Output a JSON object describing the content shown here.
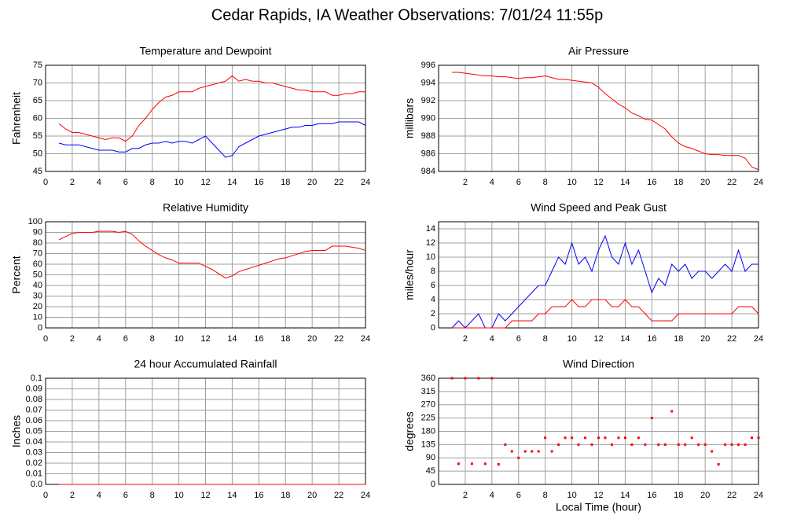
{
  "title": "Cedar Rapids, IA Weather Observations: 7/01/24 11:55p",
  "chart_data": [
    {
      "type": "line",
      "title": "Temperature and Dewpoint",
      "ylabel": "Fahrenheit",
      "x": [
        1,
        1.5,
        2,
        2.5,
        3,
        3.5,
        4,
        4.5,
        5,
        5.5,
        6,
        6.5,
        7,
        7.5,
        8,
        8.5,
        9,
        9.5,
        10,
        10.5,
        11,
        11.5,
        12,
        12.5,
        13,
        13.5,
        14,
        14.5,
        15,
        15.5,
        16,
        16.5,
        17,
        17.5,
        18,
        18.5,
        19,
        19.5,
        20,
        20.5,
        21,
        21.5,
        22,
        22.5,
        23,
        23.5,
        24
      ],
      "series": [
        {
          "color": "#ff0000",
          "values": [
            58.5,
            57,
            56,
            56,
            55.5,
            55,
            54.5,
            54,
            54.5,
            54.5,
            53.5,
            55,
            58,
            60,
            62.5,
            64.5,
            66,
            66.5,
            67.5,
            67.5,
            67.5,
            68.5,
            69,
            69.5,
            70,
            70.5,
            72,
            70.5,
            71,
            70.5,
            70.5,
            70,
            70,
            69.5,
            69,
            68.5,
            68,
            68,
            67.5,
            67.5,
            67.5,
            66.5,
            66.5,
            67,
            67,
            67.5,
            67.5
          ]
        },
        {
          "color": "#0000ff",
          "values": [
            53,
            52.5,
            52.5,
            52.5,
            52,
            51.5,
            51,
            51,
            51,
            50.5,
            50.5,
            51.5,
            51.5,
            52.5,
            53,
            53,
            53.5,
            53,
            53.5,
            53.5,
            53,
            54,
            55,
            53,
            51,
            49,
            49.5,
            52,
            53,
            54,
            55,
            55.5,
            56,
            56.5,
            57,
            57.5,
            57.5,
            58,
            58,
            58.5,
            58.5,
            58.5,
            59,
            59,
            59,
            59,
            58
          ]
        }
      ],
      "xlim": [
        0,
        24
      ],
      "xticks": [
        0,
        2,
        4,
        6,
        8,
        10,
        12,
        14,
        16,
        18,
        20,
        22,
        24
      ],
      "ylim": [
        45,
        75
      ],
      "yticks": [
        45,
        50,
        55,
        60,
        65,
        70,
        75
      ],
      "grid": true
    },
    {
      "type": "line",
      "title": "Air Pressure",
      "ylabel": "millibars",
      "x": [
        1,
        1.5,
        2,
        2.5,
        3,
        3.5,
        4,
        4.5,
        5,
        5.5,
        6,
        6.5,
        7,
        7.5,
        8,
        8.5,
        9,
        9.5,
        10,
        10.5,
        11,
        11.5,
        12,
        12.5,
        13,
        13.5,
        14,
        14.5,
        15,
        15.5,
        16,
        16.5,
        17,
        17.5,
        18,
        18.5,
        19,
        19.5,
        20,
        20.5,
        21,
        21.5,
        22,
        22.5,
        23,
        23.5,
        24
      ],
      "series": [
        {
          "color": "#ff0000",
          "values": [
            995.2,
            995.2,
            995.1,
            995,
            994.9,
            994.8,
            994.8,
            994.7,
            994.7,
            994.6,
            994.5,
            994.6,
            994.6,
            994.7,
            994.8,
            994.6,
            994.4,
            994.4,
            994.3,
            994.2,
            994.1,
            994,
            993.5,
            992.8,
            992.2,
            991.6,
            991.2,
            990.6,
            990.3,
            989.9,
            989.8,
            989.3,
            988.8,
            987.9,
            987.2,
            986.8,
            986.6,
            986.3,
            986,
            985.9,
            985.9,
            985.8,
            985.8,
            985.8,
            985.5,
            984.5,
            984.2
          ]
        }
      ],
      "xlim": [
        0,
        24
      ],
      "xticks": [
        2,
        4,
        6,
        8,
        10,
        12,
        14,
        16,
        18,
        20,
        22,
        24
      ],
      "ylim": [
        984,
        996
      ],
      "yticks": [
        984,
        986,
        988,
        990,
        992,
        994,
        996
      ],
      "grid": true
    },
    {
      "type": "line",
      "title": "Relative Humidity",
      "ylabel": "Percent",
      "x": [
        1,
        1.5,
        2,
        2.5,
        3,
        3.5,
        4,
        4.5,
        5,
        5.5,
        6,
        6.5,
        7,
        7.5,
        8,
        8.5,
        9,
        9.5,
        10,
        10.5,
        11,
        11.5,
        12,
        12.5,
        13,
        13.5,
        14,
        14.5,
        15,
        15.5,
        16,
        16.5,
        17,
        17.5,
        18,
        18.5,
        19,
        19.5,
        20,
        20.5,
        21,
        21.5,
        22,
        22.5,
        23,
        23.5,
        24
      ],
      "series": [
        {
          "color": "#ff0000",
          "values": [
            83,
            86,
            89,
            90,
            90,
            90,
            91,
            91,
            91,
            90,
            91,
            88,
            82,
            77,
            73,
            69,
            66,
            64,
            61,
            61,
            61,
            61,
            58,
            55,
            51,
            47,
            49,
            53,
            55,
            57,
            59,
            61,
            63,
            65,
            66,
            68,
            70,
            72,
            73,
            73,
            73,
            77,
            77,
            77,
            76,
            75,
            73
          ]
        }
      ],
      "xlim": [
        0,
        24
      ],
      "xticks": [
        0,
        2,
        4,
        6,
        8,
        10,
        12,
        14,
        16,
        18,
        20,
        22,
        24
      ],
      "ylim": [
        0,
        100
      ],
      "yticks": [
        0,
        10,
        20,
        30,
        40,
        50,
        60,
        70,
        80,
        90,
        100
      ],
      "grid": true
    },
    {
      "type": "line",
      "title": "Wind Speed and Peak Gust",
      "ylabel": "miles/hour",
      "x": [
        1,
        1.5,
        2,
        2.5,
        3,
        3.5,
        4,
        4.5,
        5,
        5.5,
        6,
        6.5,
        7,
        7.5,
        8,
        8.5,
        9,
        9.5,
        10,
        10.5,
        11,
        11.5,
        12,
        12.5,
        13,
        13.5,
        14,
        14.5,
        15,
        15.5,
        16,
        16.5,
        17,
        17.5,
        18,
        18.5,
        19,
        19.5,
        20,
        20.5,
        21,
        21.5,
        22,
        22.5,
        23,
        23.5,
        24
      ],
      "series": [
        {
          "color": "#0000ff",
          "values": [
            0,
            1,
            0,
            1,
            2,
            0,
            0,
            2,
            1,
            2,
            3,
            4,
            5,
            6,
            6,
            8,
            10,
            9,
            12,
            9,
            10,
            8,
            11,
            13,
            10,
            9,
            12,
            9,
            11,
            8,
            5,
            7,
            6,
            9,
            8,
            9,
            7,
            8,
            8,
            7,
            8,
            9,
            8,
            11,
            8,
            9,
            9
          ]
        },
        {
          "color": "#ff0000",
          "values": [
            0,
            0,
            0,
            0,
            0,
            0,
            0,
            0,
            0,
            1,
            1,
            1,
            1,
            2,
            2,
            3,
            3,
            3,
            4,
            3,
            3,
            4,
            4,
            4,
            3,
            3,
            4,
            3,
            3,
            2,
            1,
            1,
            1,
            1,
            2,
            2,
            2,
            2,
            2,
            2,
            2,
            2,
            2,
            3,
            3,
            3,
            2
          ]
        }
      ],
      "xlim": [
        0,
        24
      ],
      "xticks": [
        2,
        4,
        6,
        8,
        10,
        12,
        14,
        16,
        18,
        20,
        22,
        24
      ],
      "ylim": [
        0,
        15
      ],
      "yticks": [
        0,
        2,
        4,
        6,
        8,
        10,
        12,
        14
      ],
      "grid": true
    },
    {
      "type": "line",
      "title": "24 hour Accumulated Rainfall",
      "ylabel": "Inches",
      "x": [
        1,
        1.5,
        2,
        2.5,
        3,
        3.5,
        4,
        4.5,
        5,
        5.5,
        6,
        6.5,
        7,
        7.5,
        8,
        8.5,
        9,
        9.5,
        10,
        10.5,
        11,
        11.5,
        12,
        12.5,
        13,
        13.5,
        14,
        14.5,
        15,
        15.5,
        16,
        16.5,
        17,
        17.5,
        18,
        18.5,
        19,
        19.5,
        20,
        20.5,
        21,
        21.5,
        22,
        22.5,
        23,
        23.5,
        24
      ],
      "series": [
        {
          "color": "#ff0000",
          "values": [
            0,
            0,
            0,
            0,
            0,
            0,
            0,
            0,
            0,
            0,
            0,
            0,
            0,
            0,
            0,
            0,
            0,
            0,
            0,
            0,
            0,
            0,
            0,
            0,
            0,
            0,
            0,
            0,
            0,
            0,
            0,
            0,
            0,
            0,
            0,
            0,
            0,
            0,
            0,
            0,
            0,
            0,
            0,
            0,
            0,
            0,
            0
          ]
        }
      ],
      "xlim": [
        0,
        24
      ],
      "xticks": [
        0,
        2,
        4,
        6,
        8,
        10,
        12,
        14,
        16,
        18,
        20,
        22,
        24
      ],
      "ylim": [
        0,
        0.1
      ],
      "yticks": [
        {
          "value": 0,
          "label": "0.0"
        },
        0.01,
        0.02,
        0.03,
        0.04,
        0.05,
        0.06,
        0.07,
        0.08,
        0.09,
        0.1
      ],
      "grid": true
    },
    {
      "type": "scatter",
      "title": "Wind Direction",
      "ylabel": "degrees",
      "xlabel": "Local Time (hour)",
      "x": [
        1,
        1.5,
        2,
        2.5,
        3,
        3.5,
        4,
        4.5,
        5,
        5.5,
        6,
        6.5,
        7,
        7.5,
        8,
        8.5,
        9,
        9.5,
        10,
        10.5,
        11,
        11.5,
        12,
        12.5,
        13,
        13.5,
        14,
        14.5,
        15,
        15.5,
        16,
        16.5,
        17,
        17.5,
        18,
        18.5,
        19,
        19.5,
        20,
        20.5,
        21,
        21.5,
        22,
        22.5,
        23,
        23.5,
        24
      ],
      "values": [
        360,
        70,
        360,
        70,
        360,
        70,
        360,
        68,
        135,
        112,
        90,
        112,
        112,
        112,
        158,
        112,
        135,
        158,
        158,
        135,
        158,
        135,
        158,
        158,
        135,
        158,
        158,
        135,
        158,
        135,
        225,
        135,
        135,
        248,
        135,
        135,
        158,
        135,
        135,
        112,
        68,
        135,
        135,
        135,
        135,
        158,
        158
      ],
      "color": "#ff0000",
      "xlim": [
        0,
        24
      ],
      "xticks": [
        2,
        4,
        6,
        8,
        10,
        12,
        14,
        16,
        18,
        20,
        22,
        24
      ],
      "ylim": [
        0,
        360
      ],
      "yticks": [
        0,
        45,
        90,
        135,
        180,
        225,
        270,
        315,
        360
      ],
      "grid": true
    }
  ]
}
